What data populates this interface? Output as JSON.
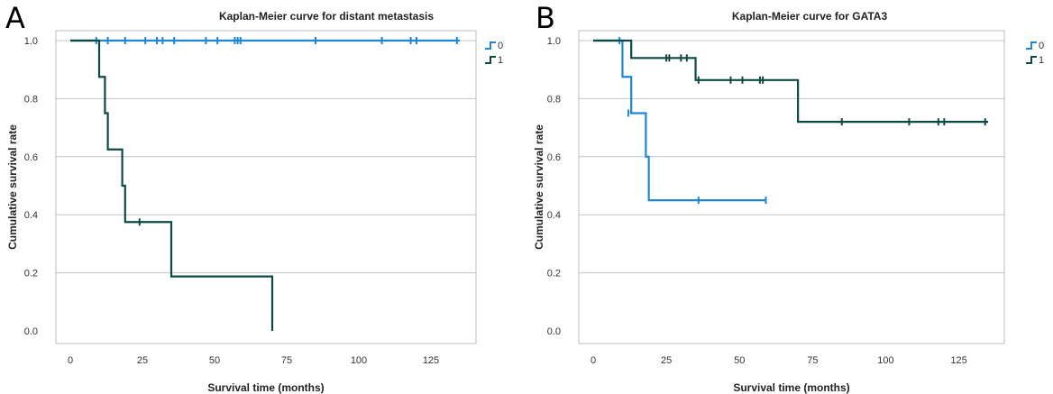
{
  "panels": [
    {
      "letter": "A"
    },
    {
      "letter": "B"
    }
  ],
  "chart_data": [
    {
      "type": "line",
      "step": true,
      "title": "Kaplan-Meier curve for distant metastasis",
      "xlabel": "Survival time (months)",
      "ylabel": "Cumulative survival rate",
      "xlim": [
        0,
        135
      ],
      "ylim": [
        0,
        1.0
      ],
      "xticks": [
        "0",
        "25",
        "50",
        "75",
        "100",
        "125"
      ],
      "yticks": [
        "0.0",
        "0.2",
        "0.4",
        "0.6",
        "0.8",
        "1.0"
      ],
      "grid": "horizontal",
      "legend": "top-right",
      "series": [
        {
          "name": "0",
          "color": "#1f86d6",
          "x": [
            0,
            135
          ],
          "y": [
            1.0,
            1.0
          ],
          "censored": [
            [
              9,
              1.0
            ],
            [
              13,
              1.0
            ],
            [
              19,
              1.0
            ],
            [
              26,
              1.0
            ],
            [
              30,
              1.0
            ],
            [
              32,
              1.0
            ],
            [
              36,
              1.0
            ],
            [
              47,
              1.0
            ],
            [
              51,
              1.0
            ],
            [
              57,
              1.0
            ],
            [
              58,
              1.0
            ],
            [
              59,
              1.0
            ],
            [
              85,
              1.0
            ],
            [
              108,
              1.0
            ],
            [
              118,
              1.0
            ],
            [
              120,
              1.0
            ],
            [
              134,
              1.0
            ]
          ]
        },
        {
          "name": "1",
          "color": "#0e4a45",
          "x": [
            0,
            10,
            12,
            13,
            18,
            19,
            35,
            70
          ],
          "y": [
            1.0,
            0.875,
            0.75,
            0.625,
            0.5,
            0.375,
            0.1875,
            0.0
          ],
          "censored": [
            [
              24,
              0.375
            ]
          ]
        }
      ]
    },
    {
      "type": "line",
      "step": true,
      "title": "Kaplan-Meier curve for GATA3",
      "xlabel": "Survival time (months)",
      "ylabel": "Cumulative survival rate",
      "xlim": [
        0,
        135
      ],
      "ylim": [
        0,
        1.0
      ],
      "xticks": [
        "0",
        "25",
        "50",
        "75",
        "100",
        "125"
      ],
      "yticks": [
        "0.0",
        "0.2",
        "0.4",
        "0.6",
        "0.8",
        "1.0"
      ],
      "grid": "horizontal",
      "legend": "top-right",
      "series": [
        {
          "name": "0",
          "color": "#1f86d6",
          "x": [
            0,
            10,
            13,
            18,
            19,
            59
          ],
          "y": [
            1.0,
            0.875,
            0.75,
            0.6,
            0.45,
            0.45
          ],
          "censored": [
            [
              9,
              1.0
            ],
            [
              12,
              0.75
            ],
            [
              36,
              0.45
            ],
            [
              59,
              0.45
            ]
          ]
        },
        {
          "name": "1",
          "color": "#0e4a45",
          "x": [
            0,
            13,
            35,
            70,
            135
          ],
          "y": [
            1.0,
            0.94,
            0.864,
            0.72,
            0.72
          ],
          "censored": [
            [
              25,
              0.94
            ],
            [
              26,
              0.94
            ],
            [
              30,
              0.94
            ],
            [
              32,
              0.94
            ],
            [
              36,
              0.864
            ],
            [
              47,
              0.864
            ],
            [
              51,
              0.864
            ],
            [
              57,
              0.864
            ],
            [
              58,
              0.864
            ],
            [
              85,
              0.72
            ],
            [
              108,
              0.72
            ],
            [
              118,
              0.72
            ],
            [
              120,
              0.72
            ],
            [
              134,
              0.72
            ]
          ]
        }
      ]
    }
  ]
}
